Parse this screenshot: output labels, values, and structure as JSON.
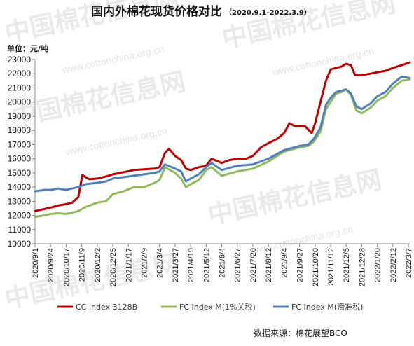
{
  "title": "国内外棉花现货价格对比",
  "subtitle": "（2020.9.1-2022.3.9）",
  "unit_label": "单位：元/吨",
  "source": "数据来源：棉花展望BCO",
  "watermark": {
    "text": "中国棉花信息网",
    "url": "www.cottonchina.org.cn"
  },
  "chart_data": {
    "type": "line",
    "xlabel": "",
    "ylabel": "单位：元/吨",
    "ylim": [
      10000,
      23000
    ],
    "yticks": [
      10000,
      11000,
      12000,
      13000,
      14000,
      15000,
      16000,
      17000,
      18000,
      19000,
      20000,
      21000,
      22000,
      23000
    ],
    "x_range": [
      "2020-09-01",
      "2022-03-09"
    ],
    "xticks": [
      "2020/9/1",
      "2020/9/24",
      "2020/10/17",
      "2020/11/9",
      "2020/12/2",
      "2020/12/25",
      "2021/1/17",
      "2021/2/9",
      "2021/3/4",
      "2021/3/27",
      "2021/4/19",
      "2021/5/12",
      "2021/6/4",
      "2021/6/27",
      "2021/7/20",
      "2021/8/12",
      "2021/9/4",
      "2021/9/27",
      "2021/10/20",
      "2021/11/12",
      "2021/12/5",
      "2021/12/28",
      "2022/1/20",
      "2022/2/12",
      "2022/3/7"
    ],
    "grid": false,
    "legend_position": "bottom",
    "series": [
      {
        "name": "CC Index 3128B",
        "color": "#c00000",
        "points": [
          [
            "2020-09-01",
            12300
          ],
          [
            "2020-09-10",
            12400
          ],
          [
            "2020-09-24",
            12550
          ],
          [
            "2020-10-05",
            12700
          ],
          [
            "2020-10-17",
            12800
          ],
          [
            "2020-10-26",
            12900
          ],
          [
            "2020-11-04",
            13300
          ],
          [
            "2020-11-10",
            14850
          ],
          [
            "2020-11-20",
            14550
          ],
          [
            "2020-12-02",
            14600
          ],
          [
            "2020-12-15",
            14750
          ],
          [
            "2020-12-25",
            14900
          ],
          [
            "2021-01-10",
            15050
          ],
          [
            "2021-01-25",
            15200
          ],
          [
            "2021-02-09",
            15250
          ],
          [
            "2021-02-25",
            15300
          ],
          [
            "2021-03-04",
            15400
          ],
          [
            "2021-03-12",
            16400
          ],
          [
            "2021-03-18",
            16700
          ],
          [
            "2021-03-27",
            16200
          ],
          [
            "2021-04-05",
            15900
          ],
          [
            "2021-04-12",
            15300
          ],
          [
            "2021-04-19",
            15200
          ],
          [
            "2021-05-01",
            15400
          ],
          [
            "2021-05-12",
            15500
          ],
          [
            "2021-05-20",
            16000
          ],
          [
            "2021-06-04",
            15700
          ],
          [
            "2021-06-15",
            15900
          ],
          [
            "2021-06-27",
            16000
          ],
          [
            "2021-07-10",
            16000
          ],
          [
            "2021-07-20",
            16200
          ],
          [
            "2021-08-01",
            16800
          ],
          [
            "2021-08-12",
            17100
          ],
          [
            "2021-08-25",
            17400
          ],
          [
            "2021-09-04",
            17800
          ],
          [
            "2021-09-12",
            18500
          ],
          [
            "2021-09-20",
            18300
          ],
          [
            "2021-09-27",
            18300
          ],
          [
            "2021-10-05",
            18300
          ],
          [
            "2021-10-15",
            17800
          ],
          [
            "2021-10-20",
            18500
          ],
          [
            "2021-10-28",
            20000
          ],
          [
            "2021-11-05",
            21500
          ],
          [
            "2021-11-12",
            22300
          ],
          [
            "2021-11-20",
            22400
          ],
          [
            "2021-11-28",
            22500
          ],
          [
            "2021-12-05",
            22700
          ],
          [
            "2021-12-12",
            22600
          ],
          [
            "2021-12-18",
            21900
          ],
          [
            "2021-12-28",
            21900
          ],
          [
            "2022-01-10",
            22000
          ],
          [
            "2022-01-20",
            22100
          ],
          [
            "2022-02-01",
            22200
          ],
          [
            "2022-02-12",
            22400
          ],
          [
            "2022-02-25",
            22600
          ],
          [
            "2022-03-09",
            22800
          ]
        ]
      },
      {
        "name": "FC Index M(1%关税)",
        "color": "#8fbc5a",
        "points": [
          [
            "2020-09-01",
            11900
          ],
          [
            "2020-09-15",
            12000
          ],
          [
            "2020-09-24",
            12100
          ],
          [
            "2020-10-05",
            12150
          ],
          [
            "2020-10-17",
            12100
          ],
          [
            "2020-11-04",
            12300
          ],
          [
            "2020-11-15",
            12600
          ],
          [
            "2020-12-02",
            12900
          ],
          [
            "2020-12-15",
            13000
          ],
          [
            "2020-12-25",
            13500
          ],
          [
            "2021-01-10",
            13700
          ],
          [
            "2021-01-25",
            14000
          ],
          [
            "2021-02-09",
            14000
          ],
          [
            "2021-02-25",
            14300
          ],
          [
            "2021-03-04",
            14500
          ],
          [
            "2021-03-12",
            15400
          ],
          [
            "2021-03-27",
            15000
          ],
          [
            "2021-04-05",
            14600
          ],
          [
            "2021-04-12",
            14000
          ],
          [
            "2021-04-19",
            14200
          ],
          [
            "2021-05-01",
            14500
          ],
          [
            "2021-05-12",
            15200
          ],
          [
            "2021-05-20",
            15400
          ],
          [
            "2021-06-04",
            14800
          ],
          [
            "2021-06-27",
            15100
          ],
          [
            "2021-07-20",
            15300
          ],
          [
            "2021-08-12",
            15800
          ],
          [
            "2021-09-04",
            16500
          ],
          [
            "2021-09-27",
            16800
          ],
          [
            "2021-10-10",
            16900
          ],
          [
            "2021-10-18",
            17200
          ],
          [
            "2021-10-28",
            17900
          ],
          [
            "2021-11-05",
            19500
          ],
          [
            "2021-11-12",
            20000
          ],
          [
            "2021-11-20",
            20600
          ],
          [
            "2021-11-28",
            20700
          ],
          [
            "2021-12-05",
            20900
          ],
          [
            "2021-12-12",
            20500
          ],
          [
            "2021-12-20",
            19400
          ],
          [
            "2021-12-28",
            19200
          ],
          [
            "2022-01-10",
            19600
          ],
          [
            "2022-01-20",
            20100
          ],
          [
            "2022-02-01",
            20400
          ],
          [
            "2022-02-12",
            21000
          ],
          [
            "2022-02-25",
            21500
          ],
          [
            "2022-03-09",
            21600
          ]
        ]
      },
      {
        "name": "FC Index M(滑准税)",
        "color": "#4f81bd",
        "points": [
          [
            "2020-09-01",
            13700
          ],
          [
            "2020-09-15",
            13800
          ],
          [
            "2020-09-24",
            13800
          ],
          [
            "2020-10-05",
            13900
          ],
          [
            "2020-10-17",
            13800
          ],
          [
            "2020-11-04",
            14000
          ],
          [
            "2020-11-15",
            14200
          ],
          [
            "2020-12-02",
            14300
          ],
          [
            "2020-12-15",
            14400
          ],
          [
            "2020-12-25",
            14600
          ],
          [
            "2021-01-10",
            14700
          ],
          [
            "2021-01-25",
            14800
          ],
          [
            "2021-02-09",
            14900
          ],
          [
            "2021-02-25",
            15000
          ],
          [
            "2021-03-04",
            15100
          ],
          [
            "2021-03-12",
            15600
          ],
          [
            "2021-03-27",
            15300
          ],
          [
            "2021-04-05",
            15100
          ],
          [
            "2021-04-12",
            14400
          ],
          [
            "2021-04-19",
            14600
          ],
          [
            "2021-05-01",
            14900
          ],
          [
            "2021-05-12",
            15400
          ],
          [
            "2021-05-20",
            15700
          ],
          [
            "2021-06-04",
            15200
          ],
          [
            "2021-06-27",
            15500
          ],
          [
            "2021-07-20",
            15600
          ],
          [
            "2021-08-12",
            16000
          ],
          [
            "2021-09-04",
            16600
          ],
          [
            "2021-09-27",
            16900
          ],
          [
            "2021-10-10",
            17000
          ],
          [
            "2021-10-18",
            17400
          ],
          [
            "2021-10-28",
            18200
          ],
          [
            "2021-11-05",
            19800
          ],
          [
            "2021-11-12",
            20300
          ],
          [
            "2021-11-20",
            20700
          ],
          [
            "2021-11-28",
            20800
          ],
          [
            "2021-12-05",
            20900
          ],
          [
            "2021-12-12",
            20600
          ],
          [
            "2021-12-20",
            19700
          ],
          [
            "2021-12-28",
            19500
          ],
          [
            "2022-01-10",
            19900
          ],
          [
            "2022-01-20",
            20400
          ],
          [
            "2022-02-01",
            20700
          ],
          [
            "2022-02-12",
            21300
          ],
          [
            "2022-02-25",
            21800
          ],
          [
            "2022-03-09",
            21700
          ]
        ]
      }
    ]
  }
}
